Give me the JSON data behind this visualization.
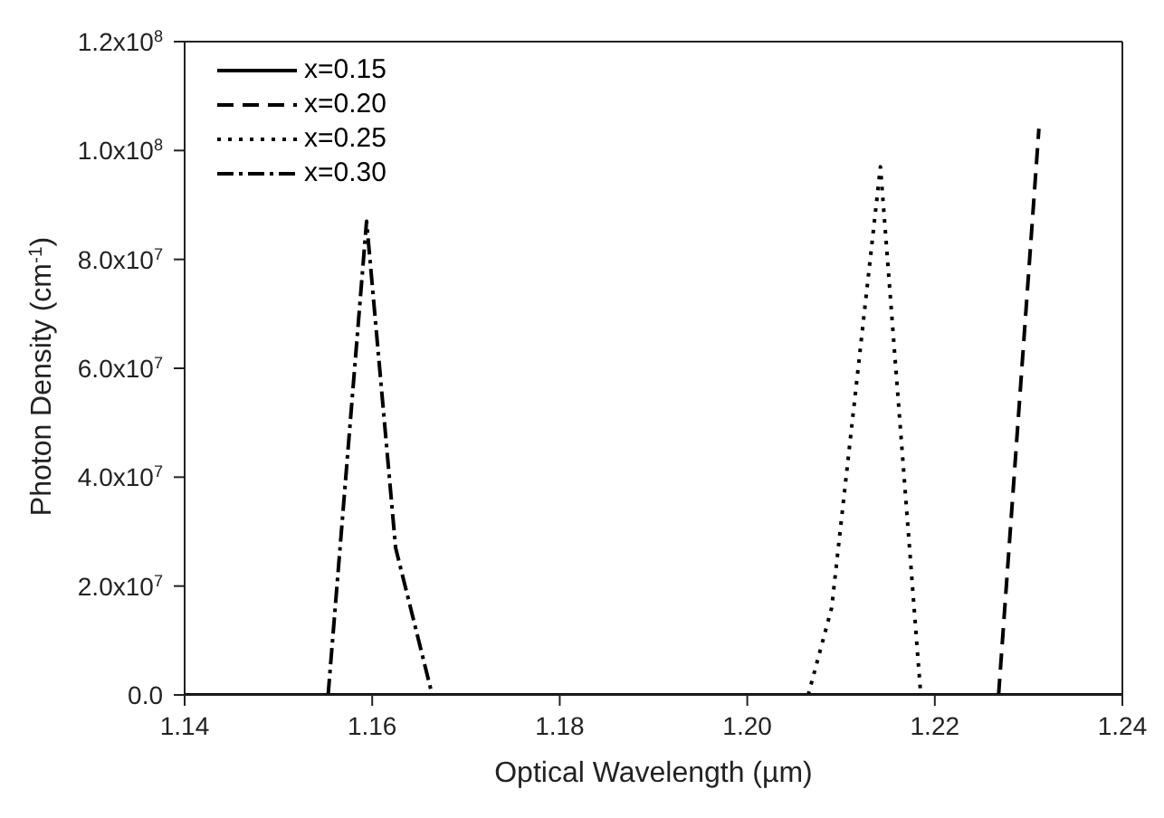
{
  "chart_data": {
    "type": "line",
    "xlabel": "Optical Wavelength (µm)",
    "ylabel": "Photon Density (cm$^{-1}$)",
    "xlim": [
      1.14,
      1.24
    ],
    "xticks": [
      {
        "value": 1.14,
        "label": "1.14"
      },
      {
        "value": 1.16,
        "label": "1.16"
      },
      {
        "value": 1.18,
        "label": "1.18"
      },
      {
        "value": 1.2,
        "label": "1.20"
      },
      {
        "value": 1.22,
        "label": "1.22"
      },
      {
        "value": 1.24,
        "label": "1.24"
      }
    ],
    "ylim": [
      0,
      120000000
    ],
    "yticks": [
      {
        "value": 0,
        "label": "0.0"
      },
      {
        "value": 20000000,
        "label": "2.0x10$^{7}$"
      },
      {
        "value": 40000000,
        "label": "4.0x10$^{7}$"
      },
      {
        "value": 60000000,
        "label": "6.0x10$^{7}$"
      },
      {
        "value": 80000000,
        "label": "8.0x10$^{7}$"
      },
      {
        "value": 100000000,
        "label": "1.0x10$^{8}$"
      },
      {
        "value": 120000000,
        "label": "1.2x10$^{8}$"
      }
    ],
    "legend": "top left",
    "series": [
      {
        "name": "x=0.15",
        "color": "#000000",
        "line_style": "solid",
        "x": [
          1.14,
          1.24
        ],
        "values": [
          0,
          0
        ]
      },
      {
        "name": "x=0.20",
        "color": "#000000",
        "line_style": "dashed",
        "x": [
          1.2268,
          1.2311
        ],
        "values": [
          0,
          104000000
        ]
      },
      {
        "name": "x=0.25",
        "color": "#000000",
        "line_style": "dotted",
        "x": [
          1.2065,
          1.209,
          1.2142,
          1.2185
        ],
        "values": [
          0,
          16000000,
          97000000,
          0
        ]
      },
      {
        "name": "x=0.30",
        "color": "#000000",
        "line_style": "dashdot",
        "x": [
          1.1553,
          1.1594,
          1.1625,
          1.1664
        ],
        "values": [
          0,
          87000000,
          27000000,
          0
        ]
      }
    ]
  }
}
